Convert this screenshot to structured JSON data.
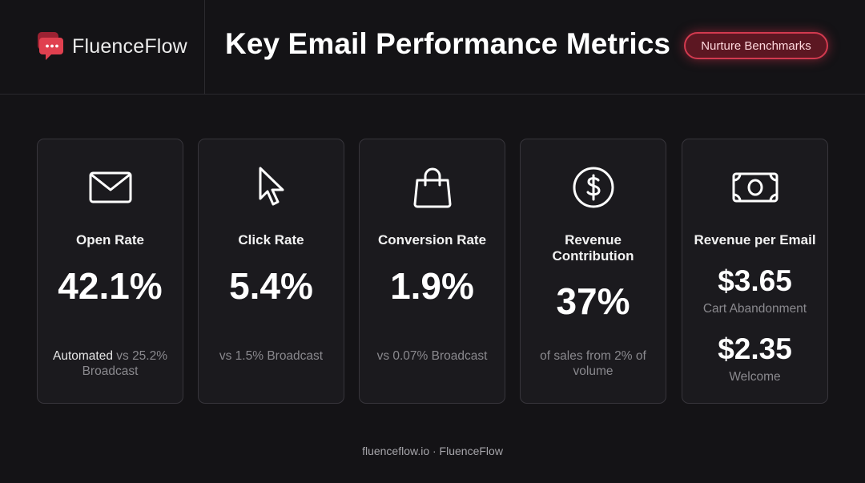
{
  "brand": {
    "name": "FluenceFlow",
    "logo_icon": "chat-bubble-icon",
    "accent": "#e0404f"
  },
  "header": {
    "title": "Key Email Performance Metrics",
    "badge": "Nurture Benchmarks"
  },
  "cards": [
    {
      "icon": "envelope-icon",
      "label": "Open Rate",
      "value": "42.1%",
      "sub_highlight": "Automated",
      "sub_rest": " vs 25.2% Broadcast"
    },
    {
      "icon": "cursor-pointer-icon",
      "label": "Click Rate",
      "value": "5.4%",
      "sub": "vs 1.5% Broadcast"
    },
    {
      "icon": "shopping-bag-icon",
      "label": "Conversion Rate",
      "value": "1.9%",
      "sub": "vs 0.07% Broadcast"
    },
    {
      "icon": "dollar-circle-icon",
      "label": "Revenue Contribution",
      "value": "37%",
      "sub": "of sales from 2% of volume"
    },
    {
      "icon": "banknote-icon",
      "label": "Revenue per Email",
      "values": [
        {
          "value": "$3.65",
          "caption": "Cart Abandonment"
        },
        {
          "value": "$2.35",
          "caption": "Welcome"
        }
      ]
    }
  ],
  "footer": "fluenceflow.io · FluenceFlow"
}
